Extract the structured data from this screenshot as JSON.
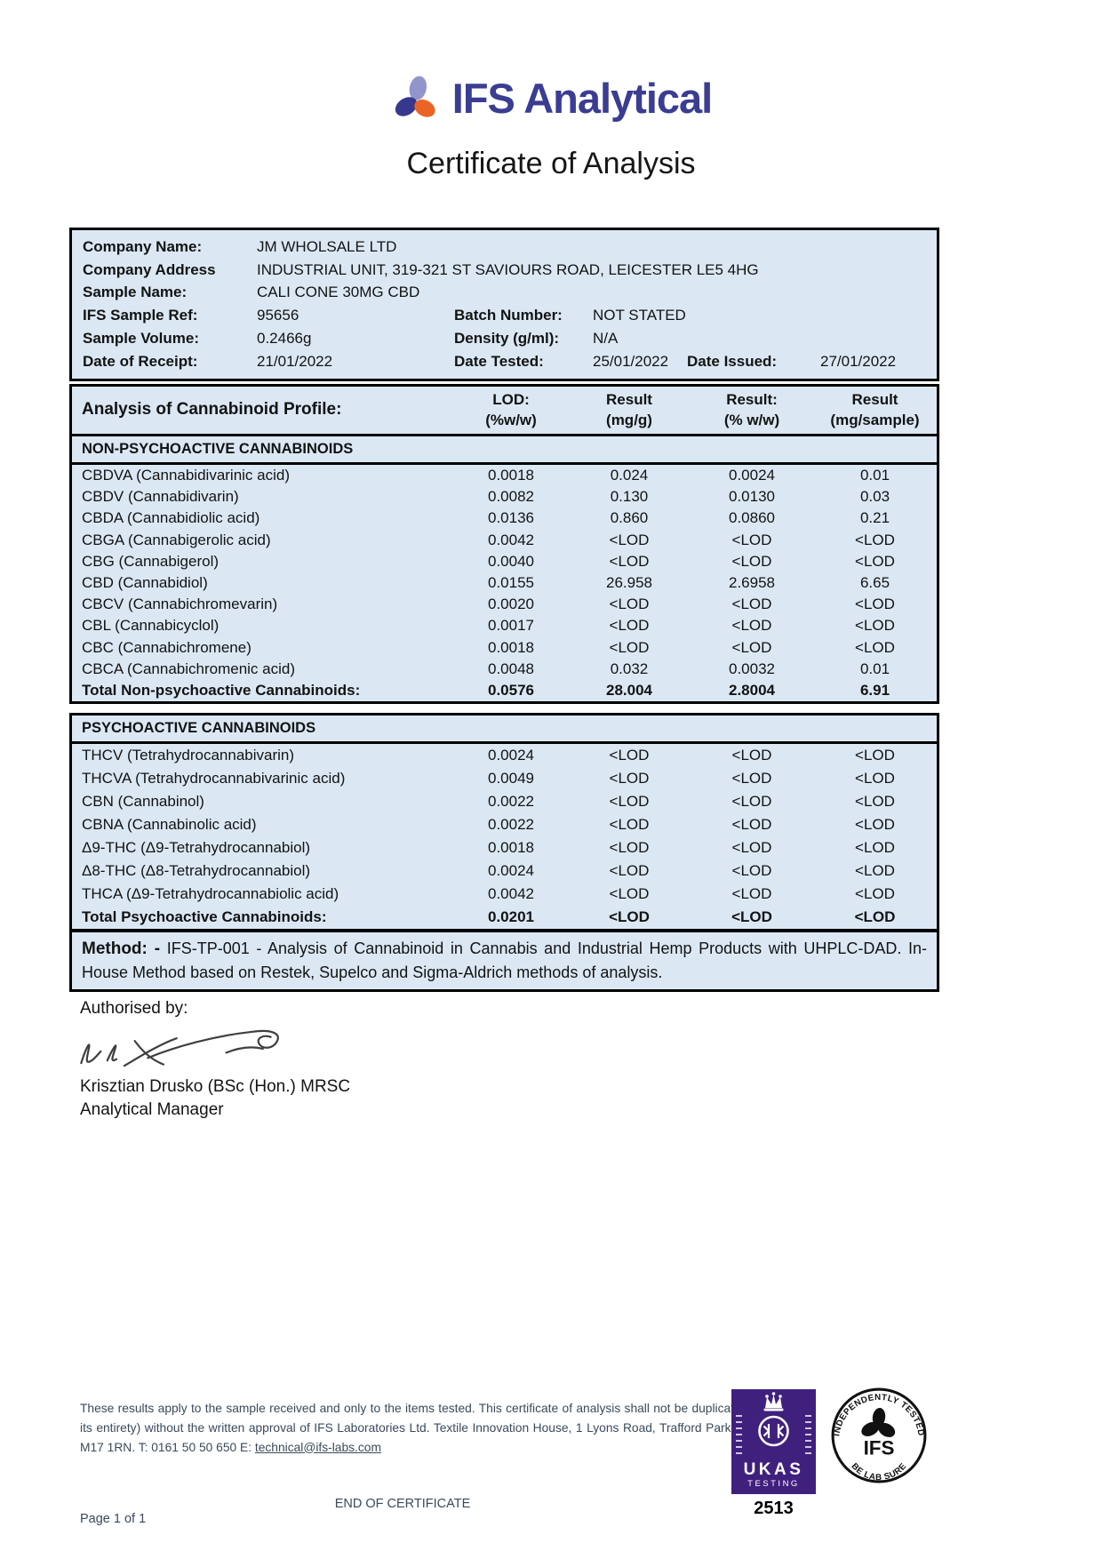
{
  "header": {
    "brand": "IFS Analytical",
    "title": "Certificate of Analysis",
    "colors": {
      "brand_navy": "#3a3d92",
      "logo_lavender": "#9295cb",
      "logo_orange": "#ea6425",
      "panel_blue": "#dbe8f4",
      "ukas_purple": "#40207d",
      "footer_text": "#3a4a5a"
    }
  },
  "sample_info": {
    "rows": [
      {
        "pairs": [
          {
            "label": "Company Name:",
            "value": "JM WHOLSALE LTD"
          }
        ]
      },
      {
        "pairs": [
          {
            "label": "Company Address",
            "value": "INDUSTRIAL UNIT, 319-321 ST SAVIOURS ROAD, LEICESTER LE5 4HG"
          }
        ]
      },
      {
        "pairs": [
          {
            "label": "Sample Name:",
            "value": "CALI CONE 30MG CBD"
          }
        ]
      },
      {
        "pairs": [
          {
            "label": "IFS Sample Ref:",
            "value": "95656"
          },
          {
            "label": "Batch Number:",
            "value": "NOT STATED"
          }
        ]
      },
      {
        "pairs": [
          {
            "label": "Sample Volume:",
            "value": "0.2466g"
          },
          {
            "label": "Density (g/ml):",
            "value": "N/A"
          }
        ]
      },
      {
        "pairs": [
          {
            "label": "Date of Receipt:",
            "value": "21/01/2022"
          },
          {
            "label": "Date Tested:",
            "value": "25/01/2022"
          },
          {
            "label": "Date Issued:",
            "value": "27/01/2022"
          }
        ]
      }
    ]
  },
  "cannabinoid_table": {
    "title": "Analysis of Cannabinoid Profile:",
    "columns": [
      {
        "l1": "LOD:",
        "l2": "(%w/w)"
      },
      {
        "l1": "Result",
        "l2": "(mg/g)"
      },
      {
        "l1": "Result:",
        "l2": "(% w/w)"
      },
      {
        "l1": "Result",
        "l2": "(mg/sample)"
      }
    ],
    "non_psychoactive": {
      "heading": "NON-PSYCHOACTIVE CANNABINOIDS",
      "rows": [
        {
          "name": "CBDVA (Cannabidivarinic acid)",
          "lod": "0.0018",
          "result_mg_g": "0.024",
          "result_pct": "0.0024",
          "result_mg_sample": "0.01"
        },
        {
          "name": "CBDV (Cannabidivarin)",
          "lod": "0.0082",
          "result_mg_g": "0.130",
          "result_pct": "0.0130",
          "result_mg_sample": "0.03"
        },
        {
          "name": "CBDA (Cannabidiolic acid)",
          "lod": "0.0136",
          "result_mg_g": "0.860",
          "result_pct": "0.0860",
          "result_mg_sample": "0.21"
        },
        {
          "name": "CBGA (Cannabigerolic acid)",
          "lod": "0.0042",
          "result_mg_g": "<LOD",
          "result_pct": "<LOD",
          "result_mg_sample": "<LOD"
        },
        {
          "name": "CBG (Cannabigerol)",
          "lod": "0.0040",
          "result_mg_g": "<LOD",
          "result_pct": "<LOD",
          "result_mg_sample": "<LOD"
        },
        {
          "name": "CBD (Cannabidiol)",
          "lod": "0.0155",
          "result_mg_g": "26.958",
          "result_pct": "2.6958",
          "result_mg_sample": "6.65"
        },
        {
          "name": "CBCV (Cannabichromevarin)",
          "lod": "0.0020",
          "result_mg_g": "<LOD",
          "result_pct": "<LOD",
          "result_mg_sample": "<LOD"
        },
        {
          "name": "CBL (Cannabicyclol)",
          "lod": "0.0017",
          "result_mg_g": "<LOD",
          "result_pct": "<LOD",
          "result_mg_sample": "<LOD"
        },
        {
          "name": "CBC (Cannabichromene)",
          "lod": "0.0018",
          "result_mg_g": "<LOD",
          "result_pct": "<LOD",
          "result_mg_sample": "<LOD"
        },
        {
          "name": "CBCA (Cannabichromenic acid)",
          "lod": "0.0048",
          "result_mg_g": "0.032",
          "result_pct": "0.0032",
          "result_mg_sample": "0.01"
        }
      ],
      "total": {
        "name": "Total Non-psychoactive Cannabinoids:",
        "lod": "0.0576",
        "result_mg_g": "28.004",
        "result_pct": "2.8004",
        "result_mg_sample": "6.91"
      }
    },
    "psychoactive": {
      "heading": "PSYCHOACTIVE CANNABINOIDS",
      "rows": [
        {
          "name": "THCV (Tetrahydrocannabivarin)",
          "lod": "0.0024",
          "result_mg_g": "<LOD",
          "result_pct": "<LOD",
          "result_mg_sample": "<LOD"
        },
        {
          "name": "THCVA (Tetrahydrocannabivarinic acid)",
          "lod": "0.0049",
          "result_mg_g": "<LOD",
          "result_pct": "<LOD",
          "result_mg_sample": "<LOD"
        },
        {
          "name": "CBN (Cannabinol)",
          "lod": "0.0022",
          "result_mg_g": "<LOD",
          "result_pct": "<LOD",
          "result_mg_sample": "<LOD"
        },
        {
          "name": "CBNA (Cannabinolic acid)",
          "lod": "0.0022",
          "result_mg_g": "<LOD",
          "result_pct": "<LOD",
          "result_mg_sample": "<LOD"
        },
        {
          "name": "Δ9-THC (Δ9-Tetrahydrocannabiol)",
          "lod": "0.0018",
          "result_mg_g": "<LOD",
          "result_pct": "<LOD",
          "result_mg_sample": "<LOD"
        },
        {
          "name": "Δ8-THC (Δ8-Tetrahydrocannabiol)",
          "lod": "0.0024",
          "result_mg_g": "<LOD",
          "result_pct": "<LOD",
          "result_mg_sample": "<LOD"
        },
        {
          "name": "THCA (Δ9-Tetrahydrocannabiolic acid)",
          "lod": "0.0042",
          "result_mg_g": "<LOD",
          "result_pct": "<LOD",
          "result_mg_sample": "<LOD"
        }
      ],
      "total": {
        "name": "Total Psychoactive Cannabinoids:",
        "lod": "0.0201",
        "result_mg_g": "<LOD",
        "result_pct": "<LOD",
        "result_mg_sample": "<LOD"
      }
    }
  },
  "method": {
    "label": "Method: -",
    "text": " IFS-TP-001 - Analysis of Cannabinoid in Cannabis and Industrial Hemp Products with UHPLC-DAD. In-House Method based on Restek, Supelco and Sigma-Aldrich methods of analysis."
  },
  "authorisation": {
    "heading": "Authorised by:",
    "name": "Krisztian Drusko (BSc (Hon.) MRSC",
    "role": "Analytical Manager"
  },
  "footer": {
    "disclaimer": "These results apply to the sample received and only to the items tested. This certificate of analysis shall not be duplicated (except in its entirety) without the written approval of IFS Laboratories Ltd. Textile Innovation House, 1 Lyons Road, Trafford Park, Manchester, M17 1RN. T: 0161 50 50 650 E: ",
    "email": "technical@ifs-labs.com",
    "end_text": "END OF CERTIFICATE",
    "page_number": "Page 1 of 1",
    "ukas": {
      "name": "UKAS",
      "sub": "TESTING",
      "number": "2513"
    },
    "ifs_stamp": {
      "top_arc": "INDEPENDENTLY TESTED",
      "bottom_arc": "BE LAB SURE",
      "center": "IFS"
    }
  }
}
